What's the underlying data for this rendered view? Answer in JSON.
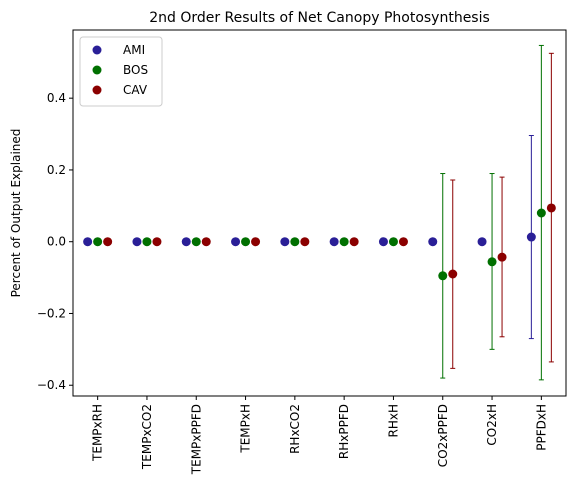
{
  "chart_data": {
    "type": "scatter",
    "title": "2nd Order Results of Net Canopy Photosynthesis",
    "xlabel": "",
    "ylabel": "Percent of Output Explained",
    "ylim": [
      -0.43,
      0.59
    ],
    "yticks": [
      -0.4,
      -0.2,
      0.0,
      0.2,
      0.4
    ],
    "ytick_labels": [
      "−0.4",
      "−0.2",
      "0.0",
      "0.2",
      "0.4"
    ],
    "categories": [
      "TEMPxRH",
      "TEMPxCO2",
      "TEMPxPPFD",
      "TEMPxH",
      "RHxCO2",
      "RHxPPFD",
      "RHxH",
      "CO2xPPFD",
      "CO2xH",
      "PPFDxH"
    ],
    "series": [
      {
        "name": "AMI",
        "color": "#2a1f97",
        "values": [
          0.0,
          0.0,
          0.0,
          0.0,
          0.0,
          0.0,
          0.0,
          0.0,
          0.0,
          0.013
        ],
        "err_low": [
          0.0,
          0.0,
          0.0,
          0.0,
          0.0,
          0.0,
          0.0,
          0.0,
          0.0,
          -0.27
        ],
        "err_high": [
          0.0,
          0.0,
          0.0,
          0.0,
          0.0,
          0.0,
          0.0,
          0.0,
          0.0,
          0.296
        ]
      },
      {
        "name": "BOS",
        "color": "#007000",
        "values": [
          0.0,
          0.0,
          0.0,
          0.0,
          0.0,
          0.0,
          0.0,
          -0.095,
          -0.056,
          0.08
        ],
        "err_low": [
          0.0,
          0.0,
          0.0,
          0.0,
          0.0,
          0.0,
          0.0,
          -0.38,
          -0.3,
          -0.385
        ],
        "err_high": [
          0.0,
          0.0,
          0.0,
          0.0,
          0.0,
          0.0,
          0.0,
          0.19,
          0.19,
          0.547
        ]
      },
      {
        "name": "CAV",
        "color": "#8b0000",
        "values": [
          0.0,
          0.0,
          0.0,
          0.0,
          0.0,
          0.0,
          0.0,
          -0.09,
          -0.043,
          0.094
        ],
        "err_low": [
          0.0,
          0.0,
          0.0,
          0.0,
          0.0,
          0.0,
          0.0,
          -0.353,
          -0.265,
          -0.335
        ],
        "err_high": [
          0.0,
          0.0,
          0.0,
          0.0,
          0.0,
          0.0,
          0.0,
          0.172,
          0.18,
          0.525
        ]
      }
    ],
    "legend": {
      "position": "top-left",
      "entries": [
        "AMI",
        "BOS",
        "CAV"
      ]
    },
    "grid": false
  }
}
